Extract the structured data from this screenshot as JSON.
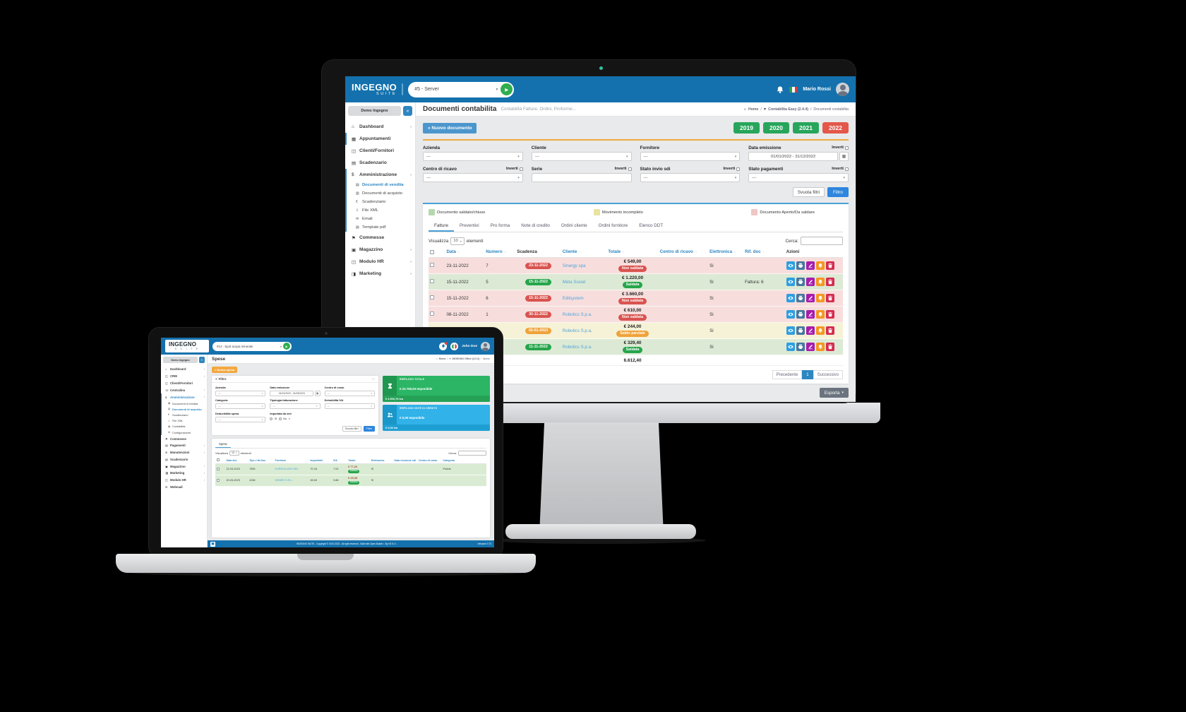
{
  "desktop": {
    "navbar": {
      "logo_line1": "INGEGNO",
      "logo_line2": "SUITE",
      "search_value": "#5 - Server",
      "user_name": "Mario Rossi"
    },
    "sidebar": {
      "org_button": "Demo Ingegno",
      "collapse_button": "«",
      "items": [
        {
          "label": "Dashboard",
          "icon": "home-icon",
          "chevron": true
        },
        {
          "label": "Appuntamenti",
          "icon": "calendar-icon",
          "active": true
        },
        {
          "label": "Clienti/Fornitori",
          "icon": "users-icon"
        },
        {
          "label": "Scadenzario",
          "icon": "calendar-check-icon"
        },
        {
          "label": "Amministrazione",
          "icon": "dollar-icon",
          "chevron": true,
          "active": true,
          "submenu": [
            {
              "label": "Documenti di vendita",
              "icon": "document-icon",
              "active": true
            },
            {
              "label": "Documenti di acquisto",
              "icon": "cart-icon"
            },
            {
              "label": "Scadenziario",
              "icon": "euro-icon"
            },
            {
              "label": "File XML",
              "icon": "download-icon"
            },
            {
              "label": "Email",
              "icon": "mail-icon"
            },
            {
              "label": "Template pdf",
              "icon": "document-icon"
            }
          ]
        },
        {
          "label": "Commesse",
          "icon": "share-icon"
        },
        {
          "label": "Magazzino",
          "icon": "box-icon",
          "chevron": true
        },
        {
          "label": "Modulo HR",
          "icon": "hr-icon",
          "chevron": true
        },
        {
          "label": "Marketing",
          "icon": "marketing-icon",
          "chevron": true
        }
      ]
    },
    "page": {
      "title": "Documenti contabilita",
      "subtitle": "Contabilità Fatture, Ordini, Proforme...",
      "breadcrumb": [
        "Home",
        "Contabilita Easy (2.4.4)",
        "Documenti contabilita"
      ],
      "new_button": "« Nuovo documento",
      "years": [
        {
          "label": "2019",
          "color": "#27a65b"
        },
        {
          "label": "2020",
          "color": "#27a65b"
        },
        {
          "label": "2021",
          "color": "#27a65b"
        },
        {
          "label": "2022",
          "color": "#e3584b"
        }
      ]
    },
    "filters": {
      "inverti_label": "Inverti",
      "fields": [
        {
          "label": "Azienda",
          "type": "select",
          "value": "---"
        },
        {
          "label": "Cliente",
          "type": "select",
          "value": "---"
        },
        {
          "label": "Fornitore",
          "type": "select",
          "value": "---"
        },
        {
          "label": "Data emissione",
          "type": "daterange",
          "value": "01/01/2022 - 31/12/2022",
          "inverti": true
        },
        {
          "label": "Centro di ricavo",
          "type": "select",
          "value": "---",
          "inverti": true
        },
        {
          "label": "Serie",
          "type": "input",
          "value": "",
          "inverti": true
        },
        {
          "label": "Stato invio sdi",
          "type": "select",
          "value": "---",
          "inverti": true
        },
        {
          "label": "Stato pagamenti",
          "type": "select",
          "value": "---",
          "inverti": true
        }
      ],
      "clear_button": "Svuota filtri",
      "apply_button": "Filtro"
    },
    "legend": [
      {
        "label": "Documento saldato/chiuso",
        "color": "#b5d9ae"
      },
      {
        "label": "Movimento incompleto",
        "color": "#e8e3a2"
      },
      {
        "label": "Documento Aperto/Da saldare",
        "color": "#eec7c4"
      }
    ],
    "tabs": [
      "Fatture",
      "Preventivi",
      "Pro forma",
      "Note di credito",
      "Ordini cliente",
      "Ordini fornitore",
      "Elenco DDT"
    ],
    "table": {
      "show_label": "Visualizza",
      "show_value": "10",
      "show_suffix": "elementi",
      "search_label": "Cerca:",
      "columns": [
        {
          "label": "Data",
          "sortable": true
        },
        {
          "label": "Numero",
          "sortable": true
        },
        {
          "label": "Scadenza",
          "sortable": false
        },
        {
          "label": "Cliente",
          "sortable": true
        },
        {
          "label": "Totale",
          "sortable": true
        },
        {
          "label": "Centro di ricavo",
          "sortable": true
        },
        {
          "label": "Elettronica",
          "sortable": true
        },
        {
          "label": "Rif. doc",
          "sortable": true
        },
        {
          "label": "Azioni",
          "sortable": false
        }
      ],
      "rows": [
        {
          "state": "open",
          "data": "23-11-2022",
          "numero": "7",
          "scadenza": "23-11-2022",
          "scadenza_color": "#d9534f",
          "cliente": "Sinergy spa",
          "totale": "€ 549,00",
          "stato": "Non saldata",
          "stato_color": "#d9534f",
          "centro": "",
          "elettronica": "Si",
          "rif": ""
        },
        {
          "state": "closed",
          "data": "15-11-2022",
          "numero": "5",
          "scadenza": "15-11-2022",
          "scadenza_color": "#26a54b",
          "cliente": "Meta Social",
          "totale": "€ 1.220,00",
          "stato": "Saldata",
          "stato_color": "#26a54b",
          "centro": "",
          "elettronica": "Si",
          "rif": "Fattura: 6"
        },
        {
          "state": "open",
          "data": "15-11-2022",
          "numero": "6",
          "scadenza": "15-11-2022",
          "scadenza_color": "#d9534f",
          "cliente": "Edilsystem",
          "totale": "€ 3.660,00",
          "stato": "Non saldata",
          "stato_color": "#d9534f",
          "centro": "",
          "elettronica": "Si",
          "rif": ""
        },
        {
          "state": "open",
          "data": "08-11-2022",
          "numero": "1",
          "scadenza": "30-11-2022",
          "scadenza_color": "#d9534f",
          "cliente": "Robotics S.p.a.",
          "totale": "€ 610,00",
          "stato": "Non saldata",
          "stato_color": "#d9534f",
          "centro": "",
          "elettronica": "Si",
          "rif": ""
        },
        {
          "state": "incomplete",
          "data": "",
          "numero": "",
          "scadenza": "02-01-2023",
          "scadenza_color": "#efa23a",
          "cliente": "Robotics S.p.a.",
          "totale": "€ 244,00",
          "stato": "Saldo parziale",
          "stato_color": "#efa23a",
          "centro": "",
          "elettronica": "Si",
          "rif": ""
        },
        {
          "state": "closed",
          "data": "",
          "numero": "",
          "scadenza": "11-11-2022",
          "scadenza_color": "#26a54b",
          "cliente": "Robotics S.p.a.",
          "totale": "€ 329,40",
          "stato": "Saldata",
          "stato_color": "#26a54b",
          "centro": "",
          "elettronica": "Si",
          "rif": ""
        }
      ],
      "actions": [
        {
          "icon": "view-icon",
          "color": "#2f9fe0"
        },
        {
          "icon": "print-icon",
          "color": "#47789f"
        },
        {
          "icon": "edit-icon",
          "color": "#a81cad"
        },
        {
          "icon": "bell-icon",
          "color": "#f6971f"
        },
        {
          "icon": "delete-icon",
          "color": "#d62b50"
        }
      ],
      "total": "6.612,40",
      "pagination": {
        "prev": "Precedente",
        "current": "1",
        "next": "Successivo"
      },
      "export_button": "Esporta"
    }
  },
  "laptop": {
    "navbar": {
      "logo_line1": "INGEGNO",
      "logo_line2": "S U I T E",
      "search_value": "#14 - Spot acqua minerale",
      "user_name": "John Doe"
    },
    "sidebar": {
      "org_button": "Demo Ingegno",
      "collapse_button": "«",
      "items": [
        {
          "label": "Dashboard",
          "icon": "home-icon",
          "chevron": true
        },
        {
          "label": "CRM",
          "icon": "users-icon",
          "chevron": true
        },
        {
          "label": "Clienti/Fornitori",
          "icon": "users-icon"
        },
        {
          "label": "Centralino",
          "icon": "phone-icon",
          "chevron": true
        },
        {
          "label": "Amministrazione",
          "icon": "dollar-icon",
          "chevron": true,
          "active": true,
          "submenu": [
            {
              "label": "Documenti di vendita",
              "icon": "document-icon"
            },
            {
              "label": "Documenti di acquisto",
              "icon": "cart-icon",
              "active": true
            },
            {
              "label": "Scadenziario",
              "icon": "euro-icon"
            },
            {
              "label": "File XML",
              "icon": "download-icon"
            },
            {
              "label": "Contabilità",
              "icon": "document-icon"
            },
            {
              "label": "Configurazione",
              "icon": "gear-icon"
            }
          ]
        },
        {
          "label": "Commesse",
          "icon": "share-icon"
        },
        {
          "label": "Pagamenti",
          "icon": "payment-icon",
          "chevron": true
        },
        {
          "label": "Manutenzioni",
          "icon": "tools-icon",
          "chevron": true
        },
        {
          "label": "Scadenzario",
          "icon": "calendar-check-icon"
        },
        {
          "label": "Magazzino",
          "icon": "box-icon",
          "chevron": true
        },
        {
          "label": "Marketing",
          "icon": "marketing-icon",
          "chevron": true
        },
        {
          "label": "Modulo HR",
          "icon": "hr-icon",
          "chevron": true
        },
        {
          "label": "Webmail",
          "icon": "mail-icon"
        }
      ]
    },
    "page": {
      "title": "Spese",
      "breadcrumb": [
        "Home",
        "INGEGNO Office (3.0.2)",
        "Spese"
      ],
      "new_button": "« Nuova spesa"
    },
    "filter": {
      "title": "Filtro",
      "fields": [
        {
          "label": "Azienda",
          "type": "select",
          "value": "---"
        },
        {
          "label": "Data emissione",
          "type": "daterange",
          "value": "01/01/2023 - 31/03/2023"
        },
        {
          "label": "Centro di costo",
          "type": "select",
          "value": "---"
        },
        {
          "label": "Categoria",
          "type": "select",
          "value": "---"
        },
        {
          "label": "Tipologia fatturazione",
          "type": "select",
          "value": "---"
        },
        {
          "label": "Detraibilità IVA",
          "type": "select",
          "value": "---"
        },
        {
          "label": "Deducibilità spesa",
          "type": "select",
          "value": "---"
        },
        {
          "label": "Importata da xml",
          "type": "radio",
          "options": [
            "Si",
            "No"
          ],
          "clear": "×"
        }
      ],
      "clear_button": "Svuota filtri",
      "apply_button": "Filtro"
    },
    "summary_cards": [
      {
        "title": "RIEPILOGO TOTALE",
        "amount": "€ 22.760,93 Imponibile",
        "strip": "€ 4.900,78 Iva",
        "color": "#2bb564",
        "strip_color": "#25a156",
        "icon_color": "#1f9750",
        "icon": "hourglass-icon"
      },
      {
        "title": "RIEPILOGO NOTE DI CREDITO",
        "amount": "€ 0,00 Imponibile",
        "strip": "€ 0,00 Iva",
        "color": "#31b2e8",
        "strip_color": "#1e9fd4",
        "icon_color": "#1a96c9",
        "icon": "people-icon"
      }
    ],
    "table": {
      "tab": "Spese",
      "show_label": "Visualizza",
      "show_value": "10",
      "show_suffix": "elementi",
      "search_label": "Cerca:",
      "columns": [
        "Data doc",
        "Tipo e Nr.Doc.",
        "Fornitore",
        "Imponibile",
        "IVA",
        "Totale",
        "Elettronica",
        "Data ricezione sdi",
        "Centro di costo",
        "Categoria"
      ],
      "rows": [
        {
          "data": "22-03-2023",
          "tipo": "7306",
          "fornitore": "EUREKA 2000 SRL",
          "imponibile": "70.18",
          "iva": "7.02",
          "totale": "€ 77,20",
          "stato": "Saldata",
          "elettronica": "Si",
          "ricezione": "",
          "centro": "",
          "categoria": "Pulizie"
        },
        {
          "data": "20-03-2023",
          "tipo": "1238",
          "fornitore": "GENER S.R.L.",
          "imponibile": "45.50",
          "iva": "3.88",
          "totale": "€ 49,38",
          "stato": "Saldata",
          "elettronica": "Si",
          "ricezione": "",
          "centro": "",
          "categoria": ""
        }
      ]
    },
    "footer": {
      "center": "INGEGNO SUITE - Copyright © 2010-2023 - All right reserved - Built with Open Builder - By H2 S.r.l.",
      "right": "Versione 3.73"
    }
  }
}
